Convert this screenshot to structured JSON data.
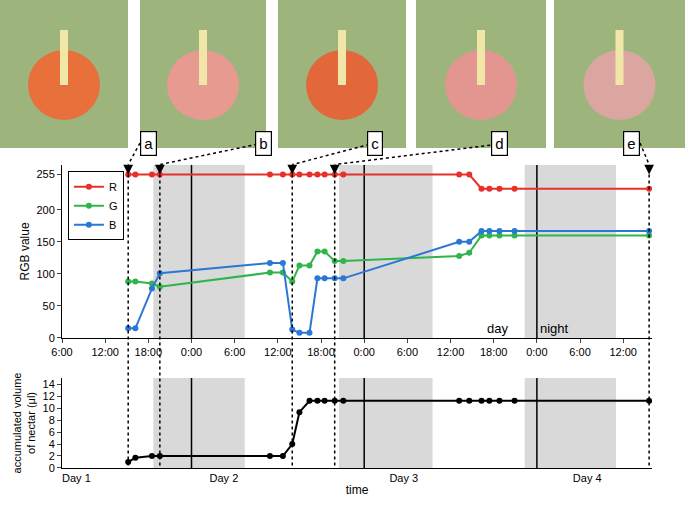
{
  "chart_data": [
    {
      "type": "line",
      "y_label": "RGB value",
      "x": [
        15.2,
        16.2,
        18.5,
        19.6,
        34.9,
        36.7,
        38.0,
        39.0,
        40.4,
        41.5,
        42.5,
        43.9,
        45.1,
        61.2,
        62.6,
        64.3,
        65.4,
        66.8,
        68.9,
        87.6
      ],
      "series": [
        {
          "name": "R",
          "color": "#e8302a",
          "values": [
            255,
            255,
            255,
            255,
            255,
            255,
            255,
            255,
            255,
            255,
            255,
            255,
            255,
            255,
            255,
            233,
            233,
            233,
            233,
            233
          ]
        },
        {
          "name": "G",
          "color": "#2fb54a",
          "values": [
            88,
            88,
            85,
            80,
            102,
            102,
            88,
            113,
            113,
            135,
            135,
            120,
            120,
            128,
            133,
            160,
            160,
            160,
            160,
            160
          ]
        },
        {
          "name": "B",
          "color": "#2a78d4",
          "values": [
            15,
            15,
            77,
            101,
            117,
            117,
            13,
            8,
            8,
            93,
            93,
            93,
            93,
            150,
            150,
            167,
            167,
            167,
            167,
            167
          ]
        }
      ],
      "marker": "circle",
      "legend": "upper left",
      "xlim": [
        6,
        88
      ],
      "xticks": [
        {
          "value": 6,
          "label": "6:00"
        },
        {
          "value": 12,
          "label": "12:00"
        },
        {
          "value": 18,
          "label": "18:00"
        },
        {
          "value": 24,
          "label": "0:00"
        },
        {
          "value": 30,
          "label": "6:00"
        },
        {
          "value": 36,
          "label": "12:00"
        },
        {
          "value": 42,
          "label": "18:00"
        },
        {
          "value": 48,
          "label": "0:00"
        },
        {
          "value": 54,
          "label": "6:00"
        },
        {
          "value": 60,
          "label": "12:00"
        },
        {
          "value": 66,
          "label": "18:00"
        },
        {
          "value": 72,
          "label": "0:00"
        },
        {
          "value": 78,
          "label": "6:00"
        },
        {
          "value": 84,
          "label": "12:00"
        }
      ],
      "ylim": [
        0,
        270
      ],
      "yticks": [
        0,
        50,
        100,
        150,
        200,
        255
      ],
      "night_periods": [
        [
          18.7,
          31.4
        ],
        [
          44.5,
          57.5
        ],
        [
          70.3,
          83.0
        ]
      ],
      "day_boundaries": [
        24,
        48,
        72
      ],
      "annotations": [
        {
          "text": "day",
          "x": 66.5,
          "y": 15
        },
        {
          "text": "night",
          "x": 74.5,
          "y": 15
        }
      ],
      "labels": [
        {
          "text": "a",
          "x": 15.2
        },
        {
          "text": "b",
          "x": 19.6
        },
        {
          "text": "c",
          "x": 38.0
        },
        {
          "text": "d",
          "x": 43.9
        },
        {
          "text": "e",
          "x": 87.6
        }
      ]
    },
    {
      "type": "line",
      "y_label": "accumulated volume\nof nectar (μl)",
      "x_label": "time",
      "x": [
        15.2,
        16.2,
        18.5,
        19.6,
        34.9,
        36.7,
        38.0,
        39.0,
        40.4,
        41.5,
        42.5,
        43.9,
        45.1,
        61.2,
        62.6,
        64.3,
        65.4,
        66.8,
        68.9,
        87.6
      ],
      "series": [
        {
          "color": "#000000",
          "values": [
            1,
            1.7,
            2,
            2,
            2,
            2,
            4,
            9.3,
            11.2,
            11.2,
            11.2,
            11.2,
            11.2,
            11.2,
            11.2,
            11.2,
            11.2,
            11.2,
            11.2,
            11.2
          ]
        }
      ],
      "marker": "circle",
      "xlim": [
        6,
        88
      ],
      "xticks": [
        {
          "value": 8,
          "label": "Day 1"
        },
        {
          "value": 28.5,
          "label": "Day 2"
        },
        {
          "value": 53.5,
          "label": "Day 3"
        },
        {
          "value": 79,
          "label": "Day 4"
        }
      ],
      "ylim": [
        0,
        15
      ],
      "yticks": [
        0,
        2,
        4,
        6,
        8,
        10,
        12,
        14
      ],
      "night_periods": [
        [
          18.7,
          31.4
        ],
        [
          44.5,
          57.5
        ],
        [
          70.3,
          83.0
        ]
      ],
      "day_boundaries": [
        24,
        48,
        72
      ]
    }
  ]
}
